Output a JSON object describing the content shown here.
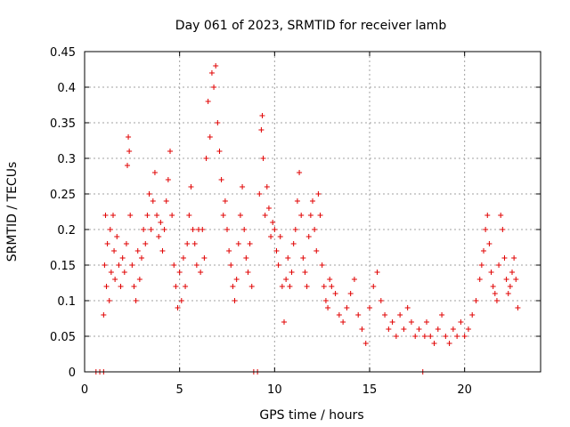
{
  "chart_data": {
    "type": "scatter",
    "title": "Day 061 of 2023, SRMTID for receiver lamb",
    "xlabel": "GPS time / hours",
    "ylabel": "SRMTID / TECUs",
    "xlim": [
      0,
      24.0
    ],
    "ylim": [
      0,
      0.45
    ],
    "xticks": [
      0,
      5,
      10,
      15,
      20
    ],
    "yticks": [
      0,
      0.05,
      0.1,
      0.15,
      0.2,
      0.25,
      0.3,
      0.35,
      0.4,
      0.45
    ],
    "xtick_labels": [
      "0",
      "5",
      "10",
      "15",
      "20"
    ],
    "ytick_labels": [
      "0",
      "0.05",
      "0.1",
      "0.15",
      "0.2",
      "0.25",
      "0.3",
      "0.35",
      "0.4",
      "0.45"
    ],
    "grid": true,
    "marker": "+",
    "color": "#e00000",
    "series": [
      {
        "name": "SRMTID",
        "points": [
          [
            0.6,
            0.0
          ],
          [
            0.8,
            0.0
          ],
          [
            1.0,
            0.0
          ],
          [
            1.0,
            0.08
          ],
          [
            1.05,
            0.15
          ],
          [
            1.1,
            0.22
          ],
          [
            1.15,
            0.12
          ],
          [
            1.2,
            0.18
          ],
          [
            1.3,
            0.1
          ],
          [
            1.35,
            0.2
          ],
          [
            1.4,
            0.14
          ],
          [
            1.5,
            0.22
          ],
          [
            1.55,
            0.17
          ],
          [
            1.6,
            0.13
          ],
          [
            1.7,
            0.19
          ],
          [
            1.8,
            0.15
          ],
          [
            1.9,
            0.12
          ],
          [
            2.0,
            0.16
          ],
          [
            2.1,
            0.14
          ],
          [
            2.2,
            0.18
          ],
          [
            2.25,
            0.29
          ],
          [
            2.3,
            0.33
          ],
          [
            2.35,
            0.31
          ],
          [
            2.4,
            0.22
          ],
          [
            2.5,
            0.15
          ],
          [
            2.6,
            0.12
          ],
          [
            2.7,
            0.1
          ],
          [
            2.8,
            0.17
          ],
          [
            2.9,
            0.13
          ],
          [
            3.0,
            0.16
          ],
          [
            3.1,
            0.2
          ],
          [
            3.2,
            0.18
          ],
          [
            3.3,
            0.22
          ],
          [
            3.4,
            0.25
          ],
          [
            3.5,
            0.2
          ],
          [
            3.6,
            0.24
          ],
          [
            3.7,
            0.28
          ],
          [
            3.8,
            0.22
          ],
          [
            3.9,
            0.19
          ],
          [
            4.0,
            0.21
          ],
          [
            4.1,
            0.17
          ],
          [
            4.2,
            0.2
          ],
          [
            4.3,
            0.24
          ],
          [
            4.4,
            0.27
          ],
          [
            4.5,
            0.31
          ],
          [
            4.6,
            0.22
          ],
          [
            4.7,
            0.15
          ],
          [
            4.8,
            0.12
          ],
          [
            4.9,
            0.09
          ],
          [
            5.0,
            0.14
          ],
          [
            5.1,
            0.1
          ],
          [
            5.2,
            0.16
          ],
          [
            5.3,
            0.12
          ],
          [
            5.4,
            0.18
          ],
          [
            5.5,
            0.22
          ],
          [
            5.6,
            0.26
          ],
          [
            5.7,
            0.2
          ],
          [
            5.8,
            0.18
          ],
          [
            5.9,
            0.15
          ],
          [
            6.0,
            0.2
          ],
          [
            6.1,
            0.14
          ],
          [
            6.2,
            0.2
          ],
          [
            6.3,
            0.16
          ],
          [
            6.4,
            0.3
          ],
          [
            6.5,
            0.38
          ],
          [
            6.6,
            0.33
          ],
          [
            6.7,
            0.42
          ],
          [
            6.8,
            0.4
          ],
          [
            6.9,
            0.43
          ],
          [
            7.0,
            0.35
          ],
          [
            7.1,
            0.31
          ],
          [
            7.2,
            0.27
          ],
          [
            7.3,
            0.22
          ],
          [
            7.4,
            0.24
          ],
          [
            7.5,
            0.2
          ],
          [
            7.6,
            0.17
          ],
          [
            7.7,
            0.15
          ],
          [
            7.8,
            0.12
          ],
          [
            7.9,
            0.1
          ],
          [
            8.0,
            0.13
          ],
          [
            8.1,
            0.18
          ],
          [
            8.2,
            0.22
          ],
          [
            8.3,
            0.26
          ],
          [
            8.4,
            0.2
          ],
          [
            8.5,
            0.16
          ],
          [
            8.6,
            0.14
          ],
          [
            8.7,
            0.18
          ],
          [
            8.8,
            0.12
          ],
          [
            8.9,
            0.0
          ],
          [
            9.1,
            0.0
          ],
          [
            9.2,
            0.25
          ],
          [
            9.3,
            0.34
          ],
          [
            9.35,
            0.36
          ],
          [
            9.4,
            0.3
          ],
          [
            9.5,
            0.22
          ],
          [
            9.6,
            0.26
          ],
          [
            9.7,
            0.23
          ],
          [
            9.8,
            0.19
          ],
          [
            9.9,
            0.21
          ],
          [
            10.0,
            0.2
          ],
          [
            10.1,
            0.17
          ],
          [
            10.2,
            0.15
          ],
          [
            10.3,
            0.19
          ],
          [
            10.4,
            0.12
          ],
          [
            10.5,
            0.07
          ],
          [
            10.6,
            0.13
          ],
          [
            10.7,
            0.16
          ],
          [
            10.8,
            0.12
          ],
          [
            10.9,
            0.14
          ],
          [
            11.0,
            0.18
          ],
          [
            11.1,
            0.2
          ],
          [
            11.2,
            0.24
          ],
          [
            11.3,
            0.28
          ],
          [
            11.4,
            0.22
          ],
          [
            11.5,
            0.16
          ],
          [
            11.6,
            0.14
          ],
          [
            11.7,
            0.12
          ],
          [
            11.8,
            0.19
          ],
          [
            11.9,
            0.22
          ],
          [
            12.0,
            0.24
          ],
          [
            12.1,
            0.2
          ],
          [
            12.2,
            0.17
          ],
          [
            12.3,
            0.25
          ],
          [
            12.4,
            0.22
          ],
          [
            12.5,
            0.15
          ],
          [
            12.6,
            0.12
          ],
          [
            12.7,
            0.1
          ],
          [
            12.8,
            0.09
          ],
          [
            12.9,
            0.13
          ],
          [
            13.0,
            0.12
          ],
          [
            13.2,
            0.11
          ],
          [
            13.4,
            0.08
          ],
          [
            13.6,
            0.07
          ],
          [
            13.8,
            0.09
          ],
          [
            14.0,
            0.11
          ],
          [
            14.2,
            0.13
          ],
          [
            14.4,
            0.08
          ],
          [
            14.6,
            0.06
          ],
          [
            14.8,
            0.04
          ],
          [
            15.0,
            0.09
          ],
          [
            15.2,
            0.12
          ],
          [
            15.4,
            0.14
          ],
          [
            15.6,
            0.1
          ],
          [
            15.8,
            0.08
          ],
          [
            16.0,
            0.06
          ],
          [
            16.2,
            0.07
          ],
          [
            16.4,
            0.05
          ],
          [
            16.6,
            0.08
          ],
          [
            16.8,
            0.06
          ],
          [
            17.0,
            0.09
          ],
          [
            17.2,
            0.07
          ],
          [
            17.4,
            0.05
          ],
          [
            17.6,
            0.06
          ],
          [
            17.8,
            0.0
          ],
          [
            17.9,
            0.05
          ],
          [
            18.0,
            0.07
          ],
          [
            18.2,
            0.05
          ],
          [
            18.4,
            0.04
          ],
          [
            18.6,
            0.06
          ],
          [
            18.8,
            0.08
          ],
          [
            19.0,
            0.05
          ],
          [
            19.2,
            0.04
          ],
          [
            19.4,
            0.06
          ],
          [
            19.6,
            0.05
          ],
          [
            19.8,
            0.07
          ],
          [
            20.0,
            0.05
          ],
          [
            20.2,
            0.06
          ],
          [
            20.4,
            0.08
          ],
          [
            20.6,
            0.1
          ],
          [
            20.8,
            0.13
          ],
          [
            20.9,
            0.15
          ],
          [
            21.0,
            0.17
          ],
          [
            21.1,
            0.2
          ],
          [
            21.2,
            0.22
          ],
          [
            21.3,
            0.18
          ],
          [
            21.4,
            0.14
          ],
          [
            21.5,
            0.12
          ],
          [
            21.6,
            0.11
          ],
          [
            21.7,
            0.1
          ],
          [
            21.8,
            0.15
          ],
          [
            21.9,
            0.22
          ],
          [
            22.0,
            0.2
          ],
          [
            22.1,
            0.16
          ],
          [
            22.2,
            0.13
          ],
          [
            22.3,
            0.11
          ],
          [
            22.4,
            0.12
          ],
          [
            22.5,
            0.14
          ],
          [
            22.6,
            0.16
          ],
          [
            22.7,
            0.13
          ],
          [
            22.8,
            0.09
          ]
        ]
      }
    ]
  }
}
